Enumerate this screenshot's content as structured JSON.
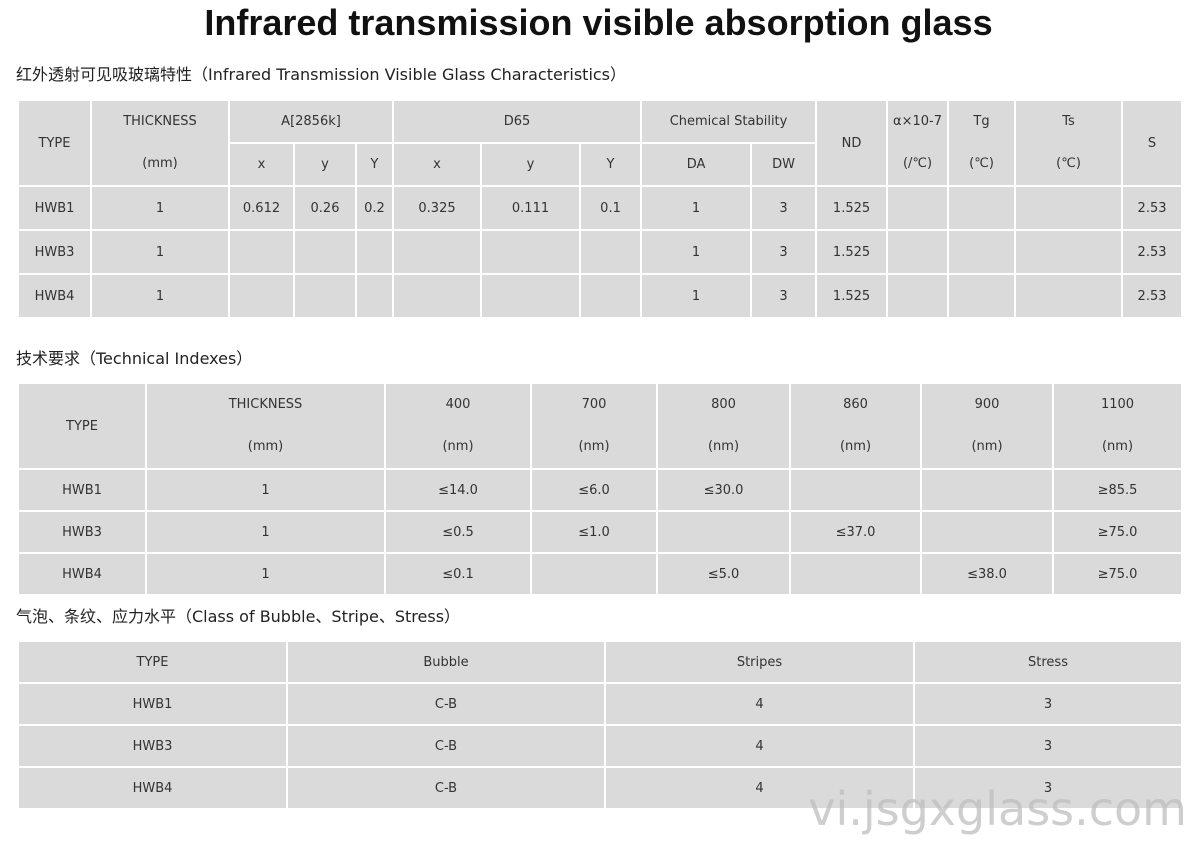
{
  "title": "Infrared transmission visible absorption glass",
  "section1": {
    "heading": "红外透射可见吸玻璃特性（Infrared Transmission Visible Glass Characteristics）",
    "table": {
      "header": {
        "type": "TYPE",
        "thickness": [
          "THICKNESS",
          "(mm)"
        ],
        "a": "A[2856k]",
        "d65": "D65",
        "chem": "Chemical Stability",
        "nd": "ND",
        "alpha": [
          "α×10-7",
          "(/℃)"
        ],
        "tg": [
          "Tg",
          "(℃)"
        ],
        "ts": [
          "Ts",
          "(℃)"
        ],
        "s": "S",
        "sub": [
          "x",
          "y",
          "Y",
          "x",
          "y",
          "Y",
          "DA",
          "DW"
        ]
      },
      "rows": [
        [
          "HWB1",
          "1",
          "0.612",
          "0.26",
          "0.2",
          "0.325",
          "0.111",
          "0.1",
          "1",
          "3",
          "1.525",
          null,
          null,
          null,
          "2.53"
        ],
        [
          "HWB3",
          "1",
          null,
          null,
          null,
          null,
          null,
          null,
          "1",
          "3",
          "1.525",
          null,
          null,
          null,
          "2.53"
        ],
        [
          "HWB4",
          "1",
          null,
          null,
          null,
          null,
          null,
          null,
          "1",
          "3",
          "1.525",
          null,
          null,
          null,
          "2.53"
        ]
      ]
    }
  },
  "section2": {
    "heading": "技术要求（Technical Indexes）",
    "table": {
      "header": [
        [
          "TYPE"
        ],
        [
          "THICKNESS",
          "(mm)"
        ],
        [
          "400",
          "(nm)"
        ],
        [
          "700",
          "(nm)"
        ],
        [
          "800",
          "(nm)"
        ],
        [
          "860",
          "(nm)"
        ],
        [
          "900",
          "(nm)"
        ],
        [
          "1100",
          "(nm)"
        ]
      ],
      "rows": [
        [
          "HWB1",
          "1",
          "≤14.0",
          "≤6.0",
          "≤30.0",
          null,
          null,
          "≥85.5"
        ],
        [
          "HWB3",
          "1",
          "≤0.5",
          "≤1.0",
          null,
          "≤37.0",
          null,
          "≥75.0"
        ],
        [
          "HWB4",
          "1",
          "≤0.1",
          null,
          "≤5.0",
          null,
          "≤38.0",
          "≥75.0"
        ]
      ]
    }
  },
  "section3": {
    "heading": "气泡、条纹、应力水平（Class of Bubble、Stripe、Stress）",
    "table": {
      "header": [
        "TYPE",
        "Bubble",
        "Stripes",
        "Stress"
      ],
      "rows": [
        [
          "HWB1",
          "C-B",
          "4",
          "3"
        ],
        [
          "HWB3",
          "C-B",
          "4",
          "3"
        ],
        [
          "HWB4",
          "C-B",
          "4",
          "3"
        ]
      ]
    }
  },
  "watermark": "vi.jsgxglass.com"
}
